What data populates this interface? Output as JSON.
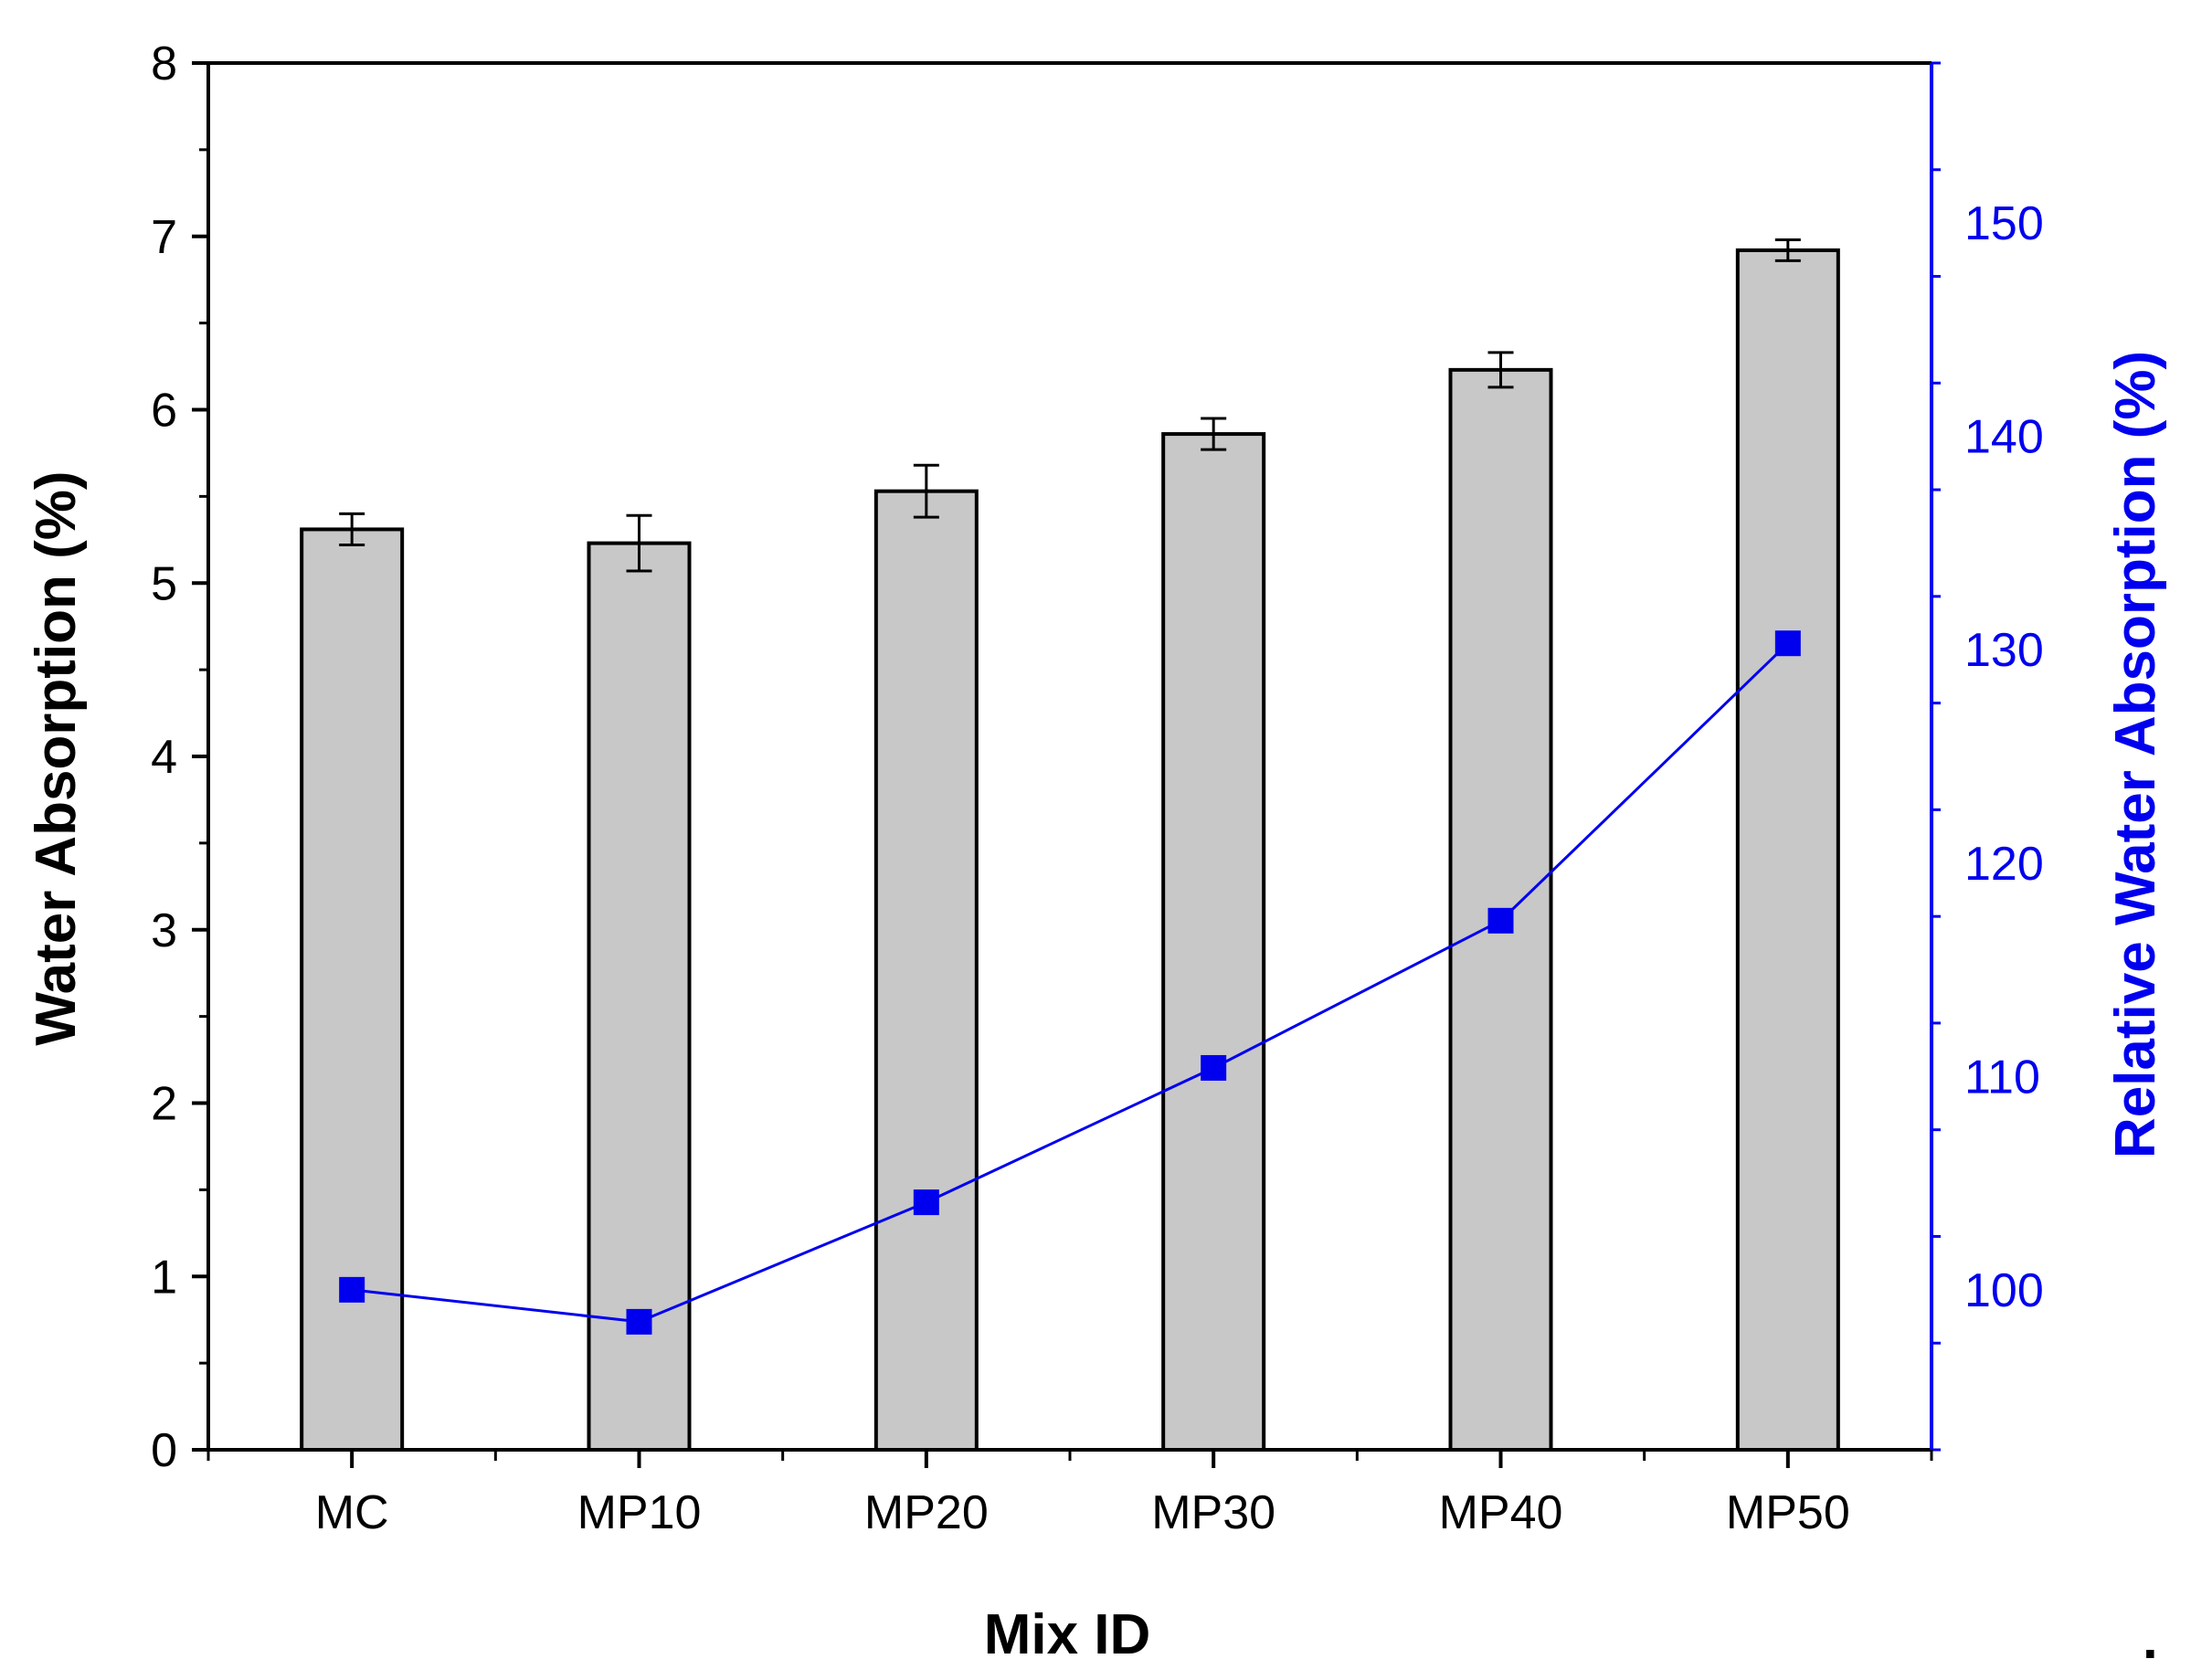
{
  "chart_data": {
    "type": "bar",
    "xlabel": "Mix ID",
    "ylabel": "Water Absorption (%)",
    "y2label": "Relative Water Absorption (%)",
    "categories": [
      "MC",
      "MP10",
      "MP20",
      "MP30",
      "MP40",
      "MP50"
    ],
    "ylim": [
      0,
      8
    ],
    "yticks": [
      0,
      1,
      2,
      3,
      4,
      5,
      6,
      7,
      8
    ],
    "y2lim": [
      92.5,
      157.5
    ],
    "y2ticks": [
      100,
      110,
      120,
      130,
      140,
      150
    ],
    "series": [
      {
        "name": "Water Absorption (%)",
        "type": "bar",
        "axis": "left",
        "color": "#c8c8c8",
        "values": [
          5.31,
          5.23,
          5.53,
          5.86,
          6.23,
          6.92
        ],
        "errors": [
          0.09,
          0.16,
          0.15,
          0.09,
          0.1,
          0.06
        ]
      },
      {
        "name": "Relative Water Absorption (%)",
        "type": "line",
        "axis": "right",
        "color": "#0000ee",
        "marker": "square",
        "values": [
          100.0,
          98.5,
          104.1,
          110.4,
          117.3,
          130.3
        ]
      }
    ],
    "legend": "none",
    "grid": false,
    "footnote": "."
  }
}
